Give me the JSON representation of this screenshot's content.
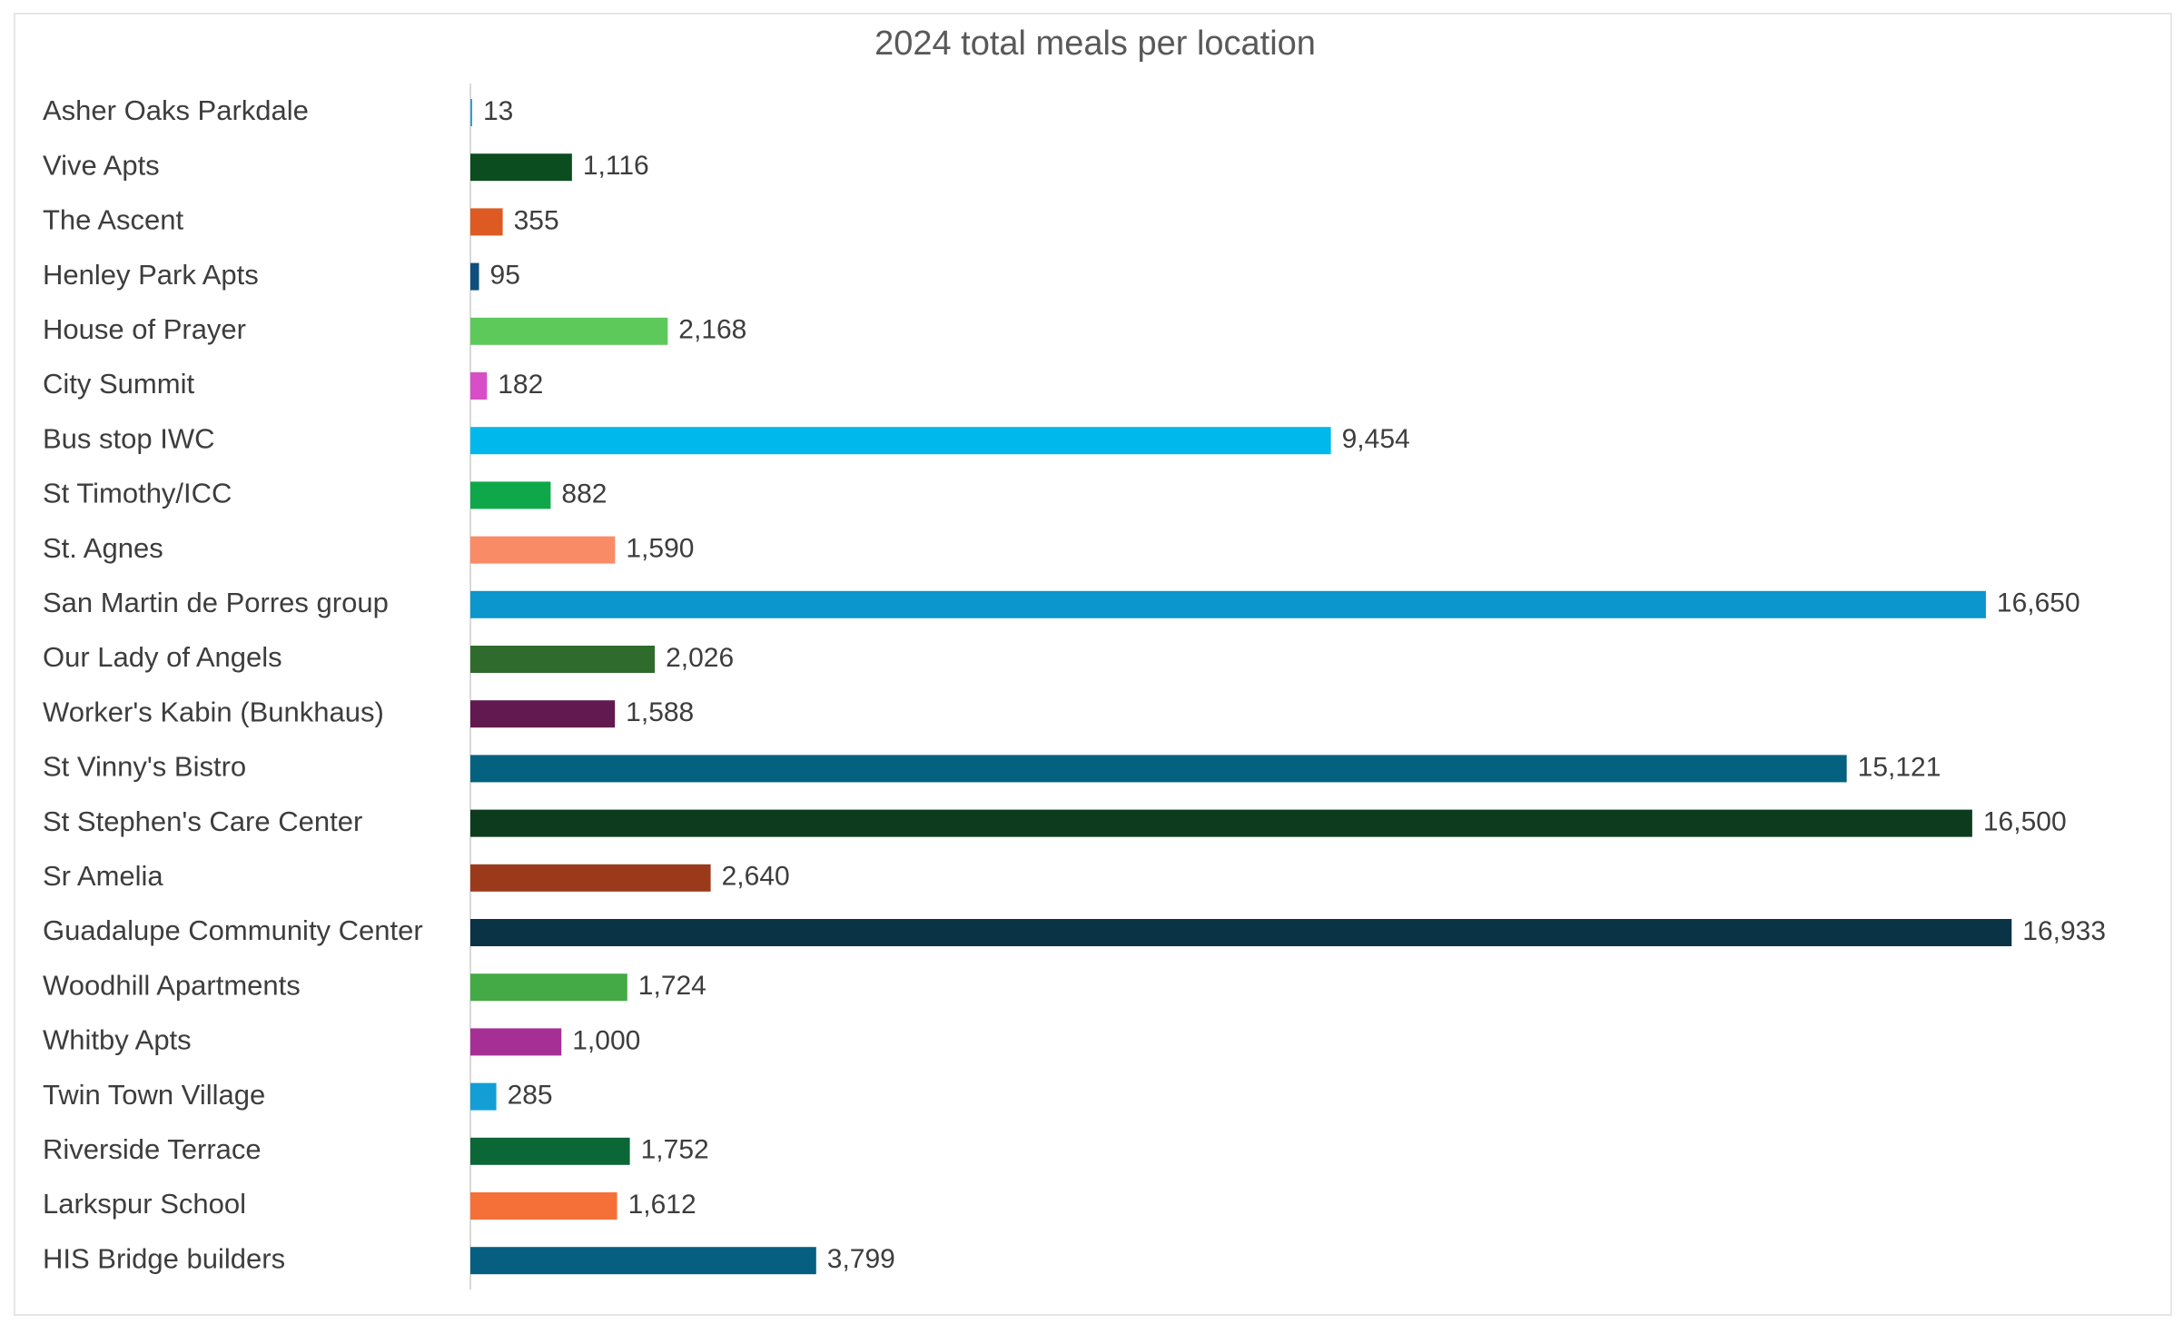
{
  "chart_data": {
    "type": "bar",
    "orientation": "horizontal",
    "title": "2024 total meals per location",
    "xlabel": "",
    "ylabel": "",
    "grid": false,
    "legend": "none",
    "xlim": [
      0,
      17000
    ],
    "categories": [
      "Asher Oaks Parkdale",
      "Vive Apts",
      "The Ascent",
      "Henley Park Apts",
      "House of Prayer",
      "City Summit",
      "Bus stop IWC",
      "St Timothy/ICC",
      "St. Agnes",
      "San Martin de Porres group",
      "Our Lady of Angels",
      "Worker's Kabin (Bunkhaus)",
      "St Vinny's Bistro",
      "St Stephen's Care Center",
      "Sr Amelia",
      "Guadalupe Community Center",
      "Woodhill Apartments",
      "Whitby Apts",
      "Twin Town Village",
      "Riverside Terrace",
      "Larkspur School",
      "HIS Bridge builders"
    ],
    "values": [
      13,
      1116,
      355,
      95,
      2168,
      182,
      9454,
      882,
      1590,
      16650,
      2026,
      1588,
      15121,
      16500,
      2640,
      16933,
      1724,
      1000,
      285,
      1752,
      1612,
      3799
    ],
    "value_labels": [
      "13",
      "1,116",
      "355",
      "95",
      "2,168",
      "182",
      "9,454",
      "882",
      "1,590",
      "16,650",
      "2,026",
      "1,588",
      "15,121",
      "16,500",
      "2,640",
      "16,933",
      "1,724",
      "1,000",
      "285",
      "1,752",
      "1,612",
      "3,799"
    ],
    "colors": [
      "#2e9fd6",
      "#0b4d1f",
      "#dd5a23",
      "#0e4f7c",
      "#5cc95a",
      "#d84ec6",
      "#00b8ec",
      "#0ea84a",
      "#f98c66",
      "#0b96cd",
      "#2f6b2c",
      "#62194f",
      "#04617f",
      "#0c3b1e",
      "#9b3a1b",
      "#0a3346",
      "#44aa46",
      "#a62f96",
      "#139ed6",
      "#0b6736",
      "#f57038",
      "#065f80"
    ]
  }
}
